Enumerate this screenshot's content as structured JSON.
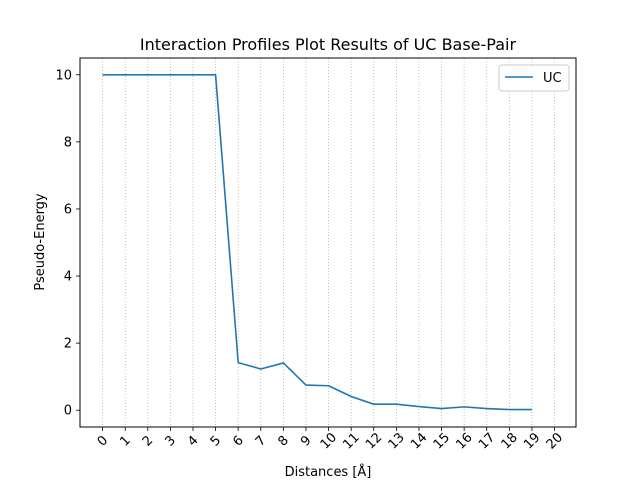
{
  "chart_data": {
    "type": "line",
    "title": "Interaction Profiles Plot Results of UC Base-Pair",
    "xlabel": "Distances [Å]",
    "ylabel": "Pseudo-Energy",
    "xlim": [
      -1,
      20.95
    ],
    "ylim": [
      -0.5,
      10.5
    ],
    "x_ticks": [
      "0",
      "1",
      "2",
      "3",
      "4",
      "5",
      "6",
      "7",
      "8",
      "9",
      "10",
      "11",
      "12",
      "13",
      "14",
      "15",
      "16",
      "17",
      "18",
      "19",
      "20"
    ],
    "y_ticks": [
      "0",
      "2",
      "4",
      "6",
      "8",
      "10"
    ],
    "grid": "vertical-dotted",
    "legend_placement": "top-right",
    "series": [
      {
        "name": "UC",
        "color": "#1f77b4",
        "x": [
          0,
          1,
          2,
          3,
          4,
          5,
          6,
          7,
          8,
          9,
          10,
          11,
          12,
          13,
          14,
          15,
          16,
          17,
          18,
          19
        ],
        "y": [
          10,
          10,
          10,
          10,
          10,
          10,
          1.42,
          1.23,
          1.41,
          0.75,
          0.73,
          0.41,
          0.18,
          0.18,
          0.11,
          0.05,
          0.1,
          0.05,
          0.02,
          0.02
        ]
      }
    ]
  }
}
